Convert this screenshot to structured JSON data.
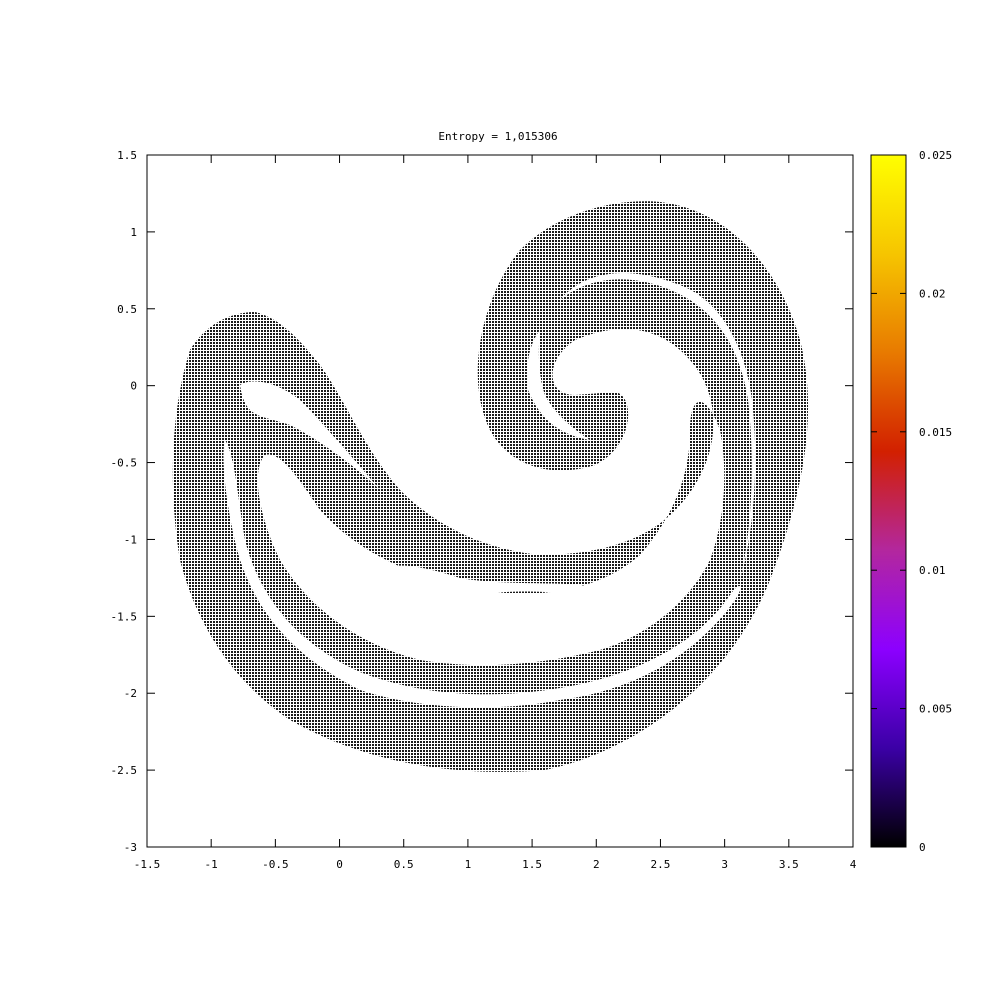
{
  "chart_data": {
    "type": "heatmap",
    "title": "Entropy = 1,015306",
    "xlabel": "",
    "ylabel": "",
    "xlim": [
      -1.5,
      4
    ],
    "ylim": [
      -3,
      1.5
    ],
    "x_ticks": [
      "-1.5",
      "-1",
      "-0.5",
      "0",
      "0.5",
      "1",
      "1.5",
      "2",
      "2.5",
      "3",
      "3.5",
      "4"
    ],
    "x_tick_values": [
      -1.5,
      -1,
      -0.5,
      0,
      0.5,
      1,
      1.5,
      2,
      2.5,
      3,
      3.5,
      4
    ],
    "y_ticks": [
      "1.5",
      "1",
      "0.5",
      "0",
      "-0.5",
      "-1",
      "-1.5",
      "-2",
      "-2.5",
      "-3"
    ],
    "y_tick_values": [
      1.5,
      1,
      0.5,
      0,
      -0.5,
      -1,
      -1.5,
      -2,
      -2.5,
      -3
    ],
    "colorbar": {
      "range": [
        0,
        0.025
      ],
      "ticks": [
        "0.025",
        "0.02",
        "0.015",
        "0.01",
        "0.005",
        "0"
      ],
      "tick_values": [
        0.025,
        0.02,
        0.015,
        0.01,
        0.005,
        0
      ],
      "palette": [
        "#000000",
        "#3b00a6",
        "#8c00ff",
        "#b3279e",
        "#d22000",
        "#e87a00",
        "#f6c500",
        "#ffff00"
      ]
    },
    "data_color": "#000000",
    "grid": false,
    "shape": "spiral density field drawn as dense dots (values near 0)"
  }
}
